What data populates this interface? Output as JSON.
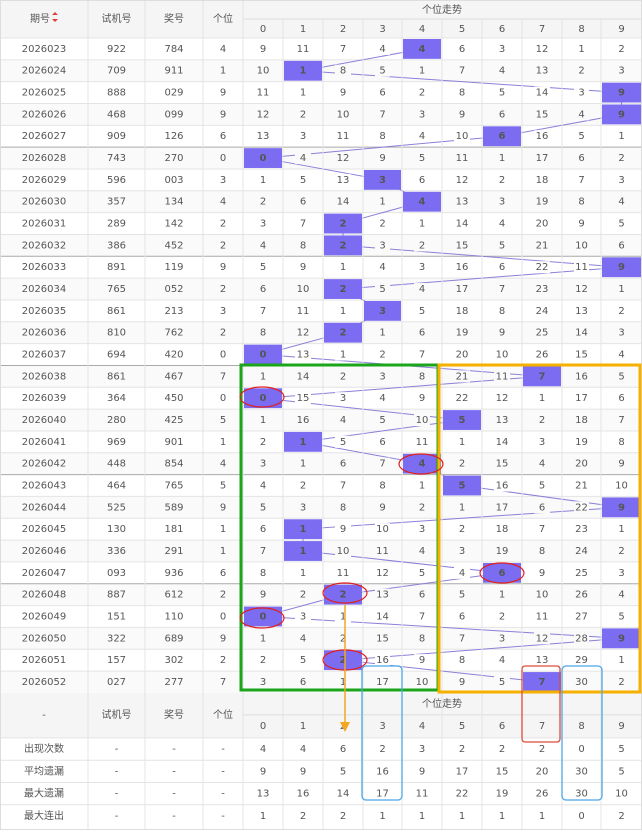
{
  "header": {
    "columns": [
      "期号",
      "试机号",
      "奖号",
      "个位"
    ],
    "trend_title": "个位走势",
    "digits": [
      "0",
      "1",
      "2",
      "3",
      "4",
      "5",
      "6",
      "7",
      "8",
      "9"
    ]
  },
  "rows": [
    {
      "period": "2026023",
      "test": "922",
      "prize": "784",
      "digit": 4,
      "cells": [
        9,
        11,
        7,
        4,
        4,
        6,
        3,
        12,
        1,
        2
      ]
    },
    {
      "period": "2026024",
      "test": "709",
      "prize": "911",
      "digit": 1,
      "cells": [
        10,
        1,
        8,
        5,
        1,
        7,
        4,
        13,
        2,
        3
      ]
    },
    {
      "period": "2026025",
      "test": "888",
      "prize": "029",
      "digit": 9,
      "cells": [
        11,
        1,
        9,
        6,
        2,
        8,
        5,
        14,
        3,
        9
      ]
    },
    {
      "period": "2026026",
      "test": "468",
      "prize": "099",
      "digit": 9,
      "cells": [
        12,
        2,
        10,
        7,
        3,
        9,
        6,
        15,
        4,
        9
      ]
    },
    {
      "period": "2026027",
      "test": "909",
      "prize": "126",
      "digit": 6,
      "cells": [
        13,
        3,
        11,
        8,
        4,
        10,
        6,
        16,
        5,
        1
      ]
    },
    {
      "period": "2026028",
      "test": "743",
      "prize": "270",
      "digit": 0,
      "cells": [
        0,
        4,
        12,
        9,
        5,
        11,
        1,
        17,
        6,
        2
      ]
    },
    {
      "period": "2026029",
      "test": "596",
      "prize": "003",
      "digit": 3,
      "cells": [
        1,
        5,
        13,
        3,
        6,
        12,
        2,
        18,
        7,
        3
      ]
    },
    {
      "period": "2026030",
      "test": "357",
      "prize": "134",
      "digit": 4,
      "cells": [
        2,
        6,
        14,
        1,
        4,
        13,
        3,
        19,
        8,
        4
      ]
    },
    {
      "period": "2026031",
      "test": "289",
      "prize": "142",
      "digit": 2,
      "cells": [
        3,
        7,
        2,
        2,
        1,
        14,
        4,
        20,
        9,
        5
      ]
    },
    {
      "period": "2026032",
      "test": "386",
      "prize": "452",
      "digit": 2,
      "cells": [
        4,
        8,
        2,
        3,
        2,
        15,
        5,
        21,
        10,
        6
      ]
    },
    {
      "period": "2026033",
      "test": "891",
      "prize": "119",
      "digit": 9,
      "cells": [
        5,
        9,
        1,
        4,
        3,
        16,
        6,
        22,
        11,
        9
      ]
    },
    {
      "period": "2026034",
      "test": "765",
      "prize": "052",
      "digit": 2,
      "cells": [
        6,
        10,
        2,
        5,
        4,
        17,
        7,
        23,
        12,
        1
      ]
    },
    {
      "period": "2026035",
      "test": "861",
      "prize": "213",
      "digit": 3,
      "cells": [
        7,
        11,
        1,
        3,
        5,
        18,
        8,
        24,
        13,
        2
      ]
    },
    {
      "period": "2026036",
      "test": "810",
      "prize": "762",
      "digit": 2,
      "cells": [
        8,
        12,
        2,
        1,
        6,
        19,
        9,
        25,
        14,
        3
      ]
    },
    {
      "period": "2026037",
      "test": "694",
      "prize": "420",
      "digit": 0,
      "cells": [
        0,
        13,
        1,
        2,
        7,
        20,
        10,
        26,
        15,
        4
      ]
    },
    {
      "period": "2026038",
      "test": "861",
      "prize": "467",
      "digit": 7,
      "cells": [
        1,
        14,
        2,
        3,
        8,
        21,
        11,
        7,
        16,
        5
      ]
    },
    {
      "period": "2026039",
      "test": "364",
      "prize": "450",
      "digit": 0,
      "cells": [
        0,
        15,
        3,
        4,
        9,
        22,
        12,
        1,
        17,
        6
      ]
    },
    {
      "period": "2026040",
      "test": "280",
      "prize": "425",
      "digit": 5,
      "cells": [
        1,
        16,
        4,
        5,
        10,
        5,
        13,
        2,
        18,
        7
      ]
    },
    {
      "period": "2026041",
      "test": "969",
      "prize": "901",
      "digit": 1,
      "cells": [
        2,
        1,
        5,
        6,
        11,
        1,
        14,
        3,
        19,
        8
      ]
    },
    {
      "period": "2026042",
      "test": "448",
      "prize": "854",
      "digit": 4,
      "cells": [
        3,
        1,
        6,
        7,
        4,
        2,
        15,
        4,
        20,
        9
      ]
    },
    {
      "period": "2026043",
      "test": "464",
      "prize": "765",
      "digit": 5,
      "cells": [
        4,
        2,
        7,
        8,
        1,
        5,
        16,
        5,
        21,
        10
      ]
    },
    {
      "period": "2026044",
      "test": "525",
      "prize": "589",
      "digit": 9,
      "cells": [
        5,
        3,
        8,
        9,
        2,
        1,
        17,
        6,
        22,
        9
      ]
    },
    {
      "period": "2026045",
      "test": "130",
      "prize": "181",
      "digit": 1,
      "cells": [
        6,
        1,
        9,
        10,
        3,
        2,
        18,
        7,
        23,
        1
      ]
    },
    {
      "period": "2026046",
      "test": "336",
      "prize": "291",
      "digit": 1,
      "cells": [
        7,
        1,
        10,
        11,
        4,
        3,
        19,
        8,
        24,
        2
      ]
    },
    {
      "period": "2026047",
      "test": "093",
      "prize": "936",
      "digit": 6,
      "cells": [
        8,
        1,
        11,
        12,
        5,
        4,
        6,
        9,
        25,
        3
      ]
    },
    {
      "period": "2026048",
      "test": "887",
      "prize": "612",
      "digit": 2,
      "cells": [
        9,
        2,
        2,
        13,
        6,
        5,
        1,
        10,
        26,
        4
      ]
    },
    {
      "period": "2026049",
      "test": "151",
      "prize": "110",
      "digit": 0,
      "cells": [
        0,
        3,
        1,
        14,
        7,
        6,
        2,
        11,
        27,
        5
      ]
    },
    {
      "period": "2026050",
      "test": "322",
      "prize": "689",
      "digit": 9,
      "cells": [
        1,
        4,
        2,
        15,
        8,
        7,
        3,
        12,
        28,
        9
      ]
    },
    {
      "period": "2026051",
      "test": "157",
      "prize": "302",
      "digit": 2,
      "cells": [
        2,
        5,
        2,
        16,
        9,
        8,
        4,
        13,
        29,
        1
      ]
    },
    {
      "period": "2026052",
      "test": "027",
      "prize": "277",
      "digit": 7,
      "cells": [
        3,
        6,
        1,
        17,
        10,
        9,
        5,
        7,
        30,
        2
      ]
    }
  ],
  "footer_header": {
    "first": "-"
  },
  "stats": [
    {
      "label": "出现次数",
      "color": "#d0021b",
      "blanks": [
        "-",
        "-",
        "-"
      ],
      "values": [
        4,
        4,
        6,
        2,
        3,
        2,
        2,
        2,
        0,
        5
      ]
    },
    {
      "label": "平均遗漏",
      "color": "#b0301c",
      "blanks": [
        "-",
        "-",
        "-"
      ],
      "values": [
        9,
        9,
        5,
        16,
        9,
        17,
        15,
        20,
        30,
        5
      ]
    },
    {
      "label": "最大遗漏",
      "color": "#2a6fc9",
      "blanks": [
        "-",
        "-",
        "-"
      ],
      "values": [
        13,
        16,
        14,
        17,
        11,
        22,
        19,
        26,
        30,
        10
      ]
    },
    {
      "label": "最大连出",
      "color": "#333333",
      "blanks": [
        "-",
        "-",
        "-"
      ],
      "values": [
        1,
        2,
        2,
        1,
        1,
        1,
        1,
        1,
        0,
        2
      ]
    }
  ]
}
